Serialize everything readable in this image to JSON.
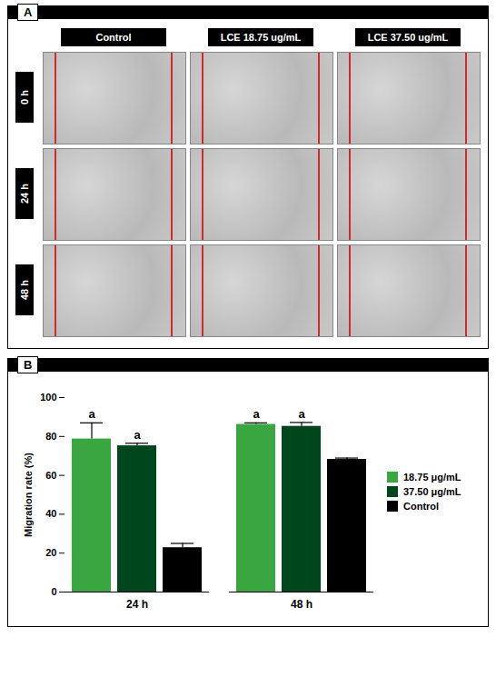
{
  "panel_a": {
    "letter": "A",
    "columns": [
      "Control",
      "LCE 18.75 ug/mL",
      "LCE 37.50 ug/mL"
    ],
    "rows": [
      "0 h",
      "24 h",
      "48 h"
    ]
  },
  "chart_data": {
    "panel_letter": "B",
    "type": "bar",
    "y_label": "Migration rate (%)",
    "categories": [
      "24 h",
      "48 h"
    ],
    "series": [
      {
        "name": "18.75 μg/mL",
        "color": "#3aa63f",
        "values": [
          78.7,
          86.2
        ],
        "errors": [
          8.3,
          0.8
        ],
        "annotations": [
          "a",
          "a"
        ]
      },
      {
        "name": "37.50 μg/mL",
        "color": "#00461c",
        "values": [
          75.2,
          85.2
        ],
        "errors": [
          1.3,
          2.0
        ],
        "annotations": [
          "a",
          "a"
        ]
      },
      {
        "name": "Control",
        "color": "#000000",
        "values": [
          22.8,
          68.2
        ],
        "errors": [
          2.2,
          0.7
        ]
      }
    ],
    "ylim": [
      0,
      100
    ],
    "yticks": [
      0,
      20,
      40,
      60,
      80,
      100
    ],
    "grid": false,
    "legend": "right"
  }
}
